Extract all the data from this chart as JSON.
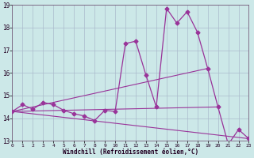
{
  "xlabel": "Windchill (Refroidissement éolien,°C)",
  "bg_color": "#cce8e8",
  "grid_color": "#aabbcc",
  "line_color": "#993399",
  "xlim": [
    0,
    23
  ],
  "ylim": [
    13,
    19
  ],
  "yticks": [
    13,
    14,
    15,
    16,
    17,
    18,
    19
  ],
  "xticks": [
    0,
    1,
    2,
    3,
    4,
    5,
    6,
    7,
    8,
    9,
    10,
    11,
    12,
    13,
    14,
    15,
    16,
    17,
    18,
    19,
    20,
    21,
    22,
    23
  ],
  "main_series": {
    "x": [
      0,
      1,
      2,
      3,
      4,
      5,
      6,
      7,
      8,
      9,
      10,
      11,
      12,
      13,
      14,
      15,
      16,
      17,
      18,
      19,
      20,
      21,
      22,
      23
    ],
    "y": [
      14.3,
      14.6,
      14.4,
      14.7,
      14.6,
      14.35,
      14.2,
      14.1,
      13.9,
      14.35,
      14.3,
      17.3,
      17.4,
      15.9,
      14.5,
      18.85,
      18.2,
      18.7,
      17.8,
      16.2,
      14.5,
      12.85,
      13.5,
      13.1
    ]
  },
  "trend_lines": [
    {
      "x": [
        0,
        20
      ],
      "y": [
        14.3,
        14.5
      ]
    },
    {
      "x": [
        0,
        19
      ],
      "y": [
        14.3,
        16.2
      ]
    },
    {
      "x": [
        0,
        23
      ],
      "y": [
        14.3,
        13.1
      ]
    }
  ]
}
